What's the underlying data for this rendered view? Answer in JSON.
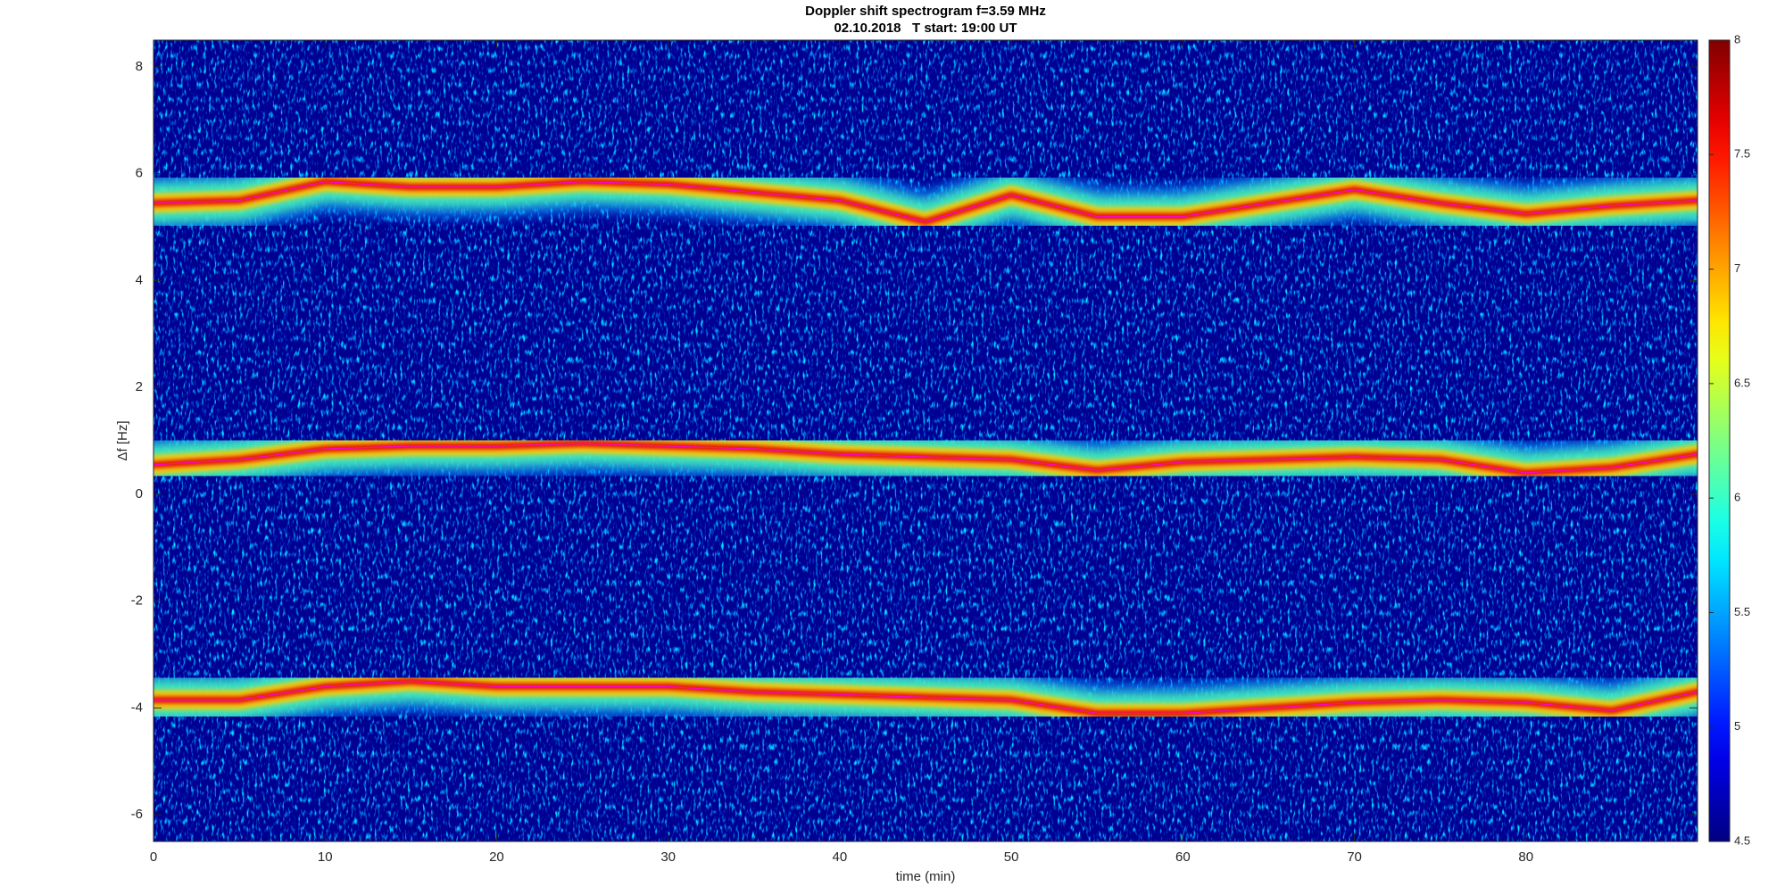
{
  "chart_data": {
    "type": "spectrogram",
    "title": "Doppler shift spectrogram f=3.59 MHz",
    "subtitle": "02.10.2018   T start: 19:00 UT",
    "x_label": "time (min)",
    "y_label": "Δf [Hz]",
    "xlim": [
      0,
      90
    ],
    "ylim": [
      -6.5,
      8.5
    ],
    "xticks": [
      0,
      10,
      20,
      30,
      40,
      50,
      60,
      70,
      80
    ],
    "yticks": [
      -6,
      -4,
      -2,
      0,
      2,
      4,
      6,
      8
    ],
    "colormap": "jet",
    "clim": [
      4.5,
      8
    ],
    "cticks": [
      4.5,
      5,
      5.5,
      6,
      6.5,
      7,
      7.5,
      8
    ],
    "x": [
      0,
      5,
      10,
      15,
      20,
      25,
      30,
      35,
      40,
      45,
      50,
      55,
      60,
      65,
      70,
      75,
      80,
      85,
      90
    ],
    "traces": [
      {
        "color": "#ff00ff",
        "values": [
          5.45,
          5.5,
          5.85,
          5.75,
          5.75,
          5.85,
          5.8,
          5.65,
          5.5,
          5.1,
          5.6,
          5.2,
          5.2,
          5.45,
          5.7,
          5.45,
          5.25,
          5.4,
          5.5
        ]
      },
      {
        "color": "#ff00ff",
        "values": [
          0.55,
          0.65,
          0.85,
          0.9,
          0.9,
          0.95,
          0.9,
          0.85,
          0.75,
          0.7,
          0.65,
          0.45,
          0.6,
          0.65,
          0.7,
          0.65,
          0.4,
          0.5,
          0.75
        ]
      },
      {
        "color": "#ff00ff",
        "values": [
          -3.85,
          -3.85,
          -3.6,
          -3.5,
          -3.6,
          -3.6,
          -3.6,
          -3.7,
          -3.75,
          -3.8,
          -3.85,
          -4.1,
          -4.1,
          -4.0,
          -3.9,
          -3.85,
          -3.9,
          -4.05,
          -3.7
        ]
      }
    ]
  }
}
